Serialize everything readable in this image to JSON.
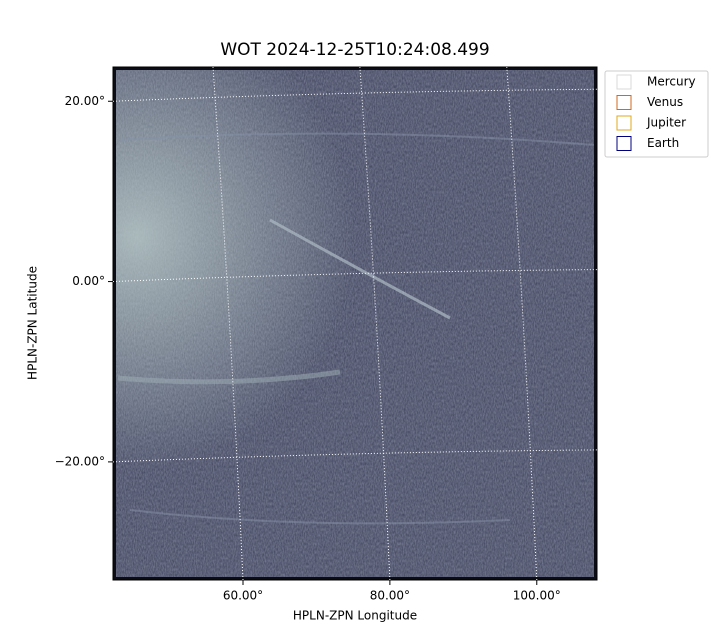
{
  "chart_data": {
    "type": "image",
    "title": "WOT 2024-12-25T10:24:08.499",
    "x_label": "HPLN-ZPN Longitude",
    "y_label": "HPLN-ZPN Latitude",
    "xlim": [
      42.3,
      108.2
    ],
    "ylim": [
      -33.1,
      23.8
    ],
    "xticks": [
      {
        "value": 60,
        "label": "60.00°"
      },
      {
        "value": 80,
        "label": "80.00°"
      },
      {
        "value": 100,
        "label": "100.00°"
      }
    ],
    "yticks": [
      {
        "value": -20,
        "label": "−20.00°"
      },
      {
        "value": 0,
        "label": "0.00°"
      },
      {
        "value": 20,
        "label": "20.00°"
      }
    ],
    "grid": true,
    "legend_position": "outside-right",
    "legend": [
      {
        "name": "Mercury",
        "color": "#d9d9d9"
      },
      {
        "name": "Venus",
        "color": "#d2691e"
      },
      {
        "name": "Jupiter",
        "color": "#e0a81c"
      },
      {
        "name": "Earth",
        "color": "#00007f"
      }
    ]
  }
}
